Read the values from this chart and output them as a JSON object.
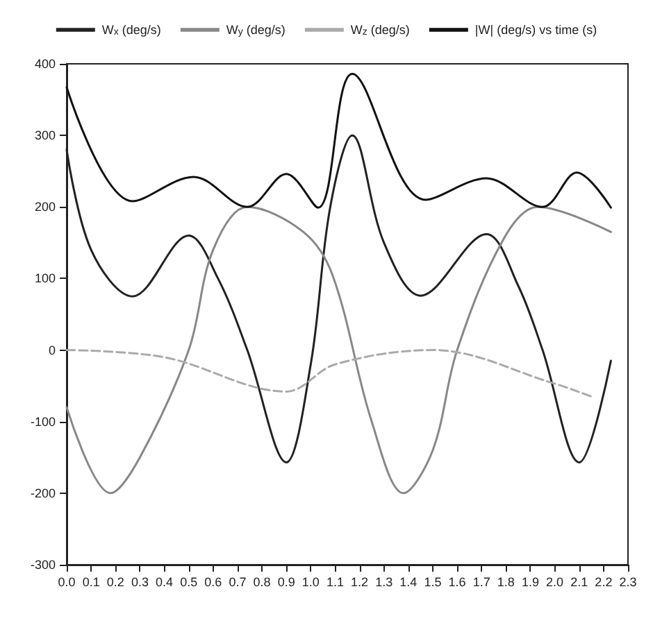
{
  "chart_data": {
    "type": "line",
    "xlim": [
      0,
      2.3
    ],
    "ylim": [
      -300,
      400
    ],
    "xticks": [
      {
        "value": 0,
        "label": "0.0"
      },
      {
        "value": 0.1,
        "label": "0.1"
      },
      {
        "value": 0.2,
        "label": "0.2"
      },
      {
        "value": 0.3,
        "label": "0.3"
      },
      {
        "value": 0.4,
        "label": "0.4"
      },
      {
        "value": 0.5,
        "label": "0.5"
      },
      {
        "value": 0.6,
        "label": "0.6"
      },
      {
        "value": 0.7,
        "label": "0.7"
      },
      {
        "value": 0.8,
        "label": "0.8"
      },
      {
        "value": 0.9,
        "label": "0.9"
      },
      {
        "value": 1,
        "label": "1.0"
      },
      {
        "value": 1.1,
        "label": "1.1"
      },
      {
        "value": 1.2,
        "label": "1.2"
      },
      {
        "value": 1.3,
        "label": "1.3"
      },
      {
        "value": 1.4,
        "label": "1.4"
      },
      {
        "value": 1.5,
        "label": "1.5"
      },
      {
        "value": 1.6,
        "label": "1.6"
      },
      {
        "value": 1.7,
        "label": "1.7"
      },
      {
        "value": 1.8,
        "label": "1.8"
      },
      {
        "value": 1.9,
        "label": "1.9"
      },
      {
        "value": 2,
        "label": "2.0"
      },
      {
        "value": 2.1,
        "label": "2.1"
      },
      {
        "value": 2.2,
        "label": "2.2"
      },
      {
        "value": 2.3,
        "label": "2.3"
      }
    ],
    "yticks": [
      -300,
      -200,
      -100,
      0,
      100,
      200,
      300,
      400
    ],
    "grid": false,
    "legend": "top",
    "marker": "none",
    "series": [
      {
        "name": "W$_{x}$ (deg/s)",
        "color": "#222222",
        "line_style": "solid",
        "x": [
          0,
          0.1,
          0.27,
          0.5,
          0.62,
          0.74,
          0.9,
          1.0,
          1.08,
          1.17,
          1.3,
          1.45,
          1.72,
          1.85,
          1.95,
          2.1,
          2.23
        ],
        "values": [
          280,
          140,
          75,
          160,
          100,
          0,
          -157,
          -20,
          200,
          300,
          150,
          76,
          162,
          90,
          0,
          -157,
          -15
        ]
      },
      {
        "name": "W$_{y}$ (deg/s)",
        "color": "#888888",
        "line_style": "solid",
        "x": [
          0,
          0.18,
          0.3,
          0.5,
          0.6,
          0.74,
          0.97,
          1.09,
          1.25,
          1.38,
          1.5,
          1.6,
          1.79,
          1.93,
          2.23
        ],
        "values": [
          -80,
          -200,
          -150,
          0,
          140,
          200,
          165,
          104,
          -100,
          -200,
          -140,
          0,
          155,
          200,
          165
        ]
      },
      {
        "name": "W$_{z}$ (deg/s)",
        "color": "#aaaaaa",
        "line_style": "dashed",
        "x": [
          0,
          0.4,
          0.9,
          1.1,
          1.5,
          2.0,
          2.15
        ],
        "values": [
          0,
          -10,
          -58,
          -20,
          0,
          -47,
          -65
        ]
      },
      {
        "name": "|W| (deg/s) vs time (s)",
        "color": "#111111",
        "line_style": "solid",
        "x": [
          0,
          0.27,
          0.52,
          0.74,
          0.9,
          1.03,
          1.17,
          1.47,
          1.72,
          1.95,
          2.09,
          2.23
        ],
        "values": [
          367,
          208,
          242,
          200,
          246,
          199,
          386,
          210,
          240,
          200,
          248,
          199
        ]
      }
    ]
  }
}
